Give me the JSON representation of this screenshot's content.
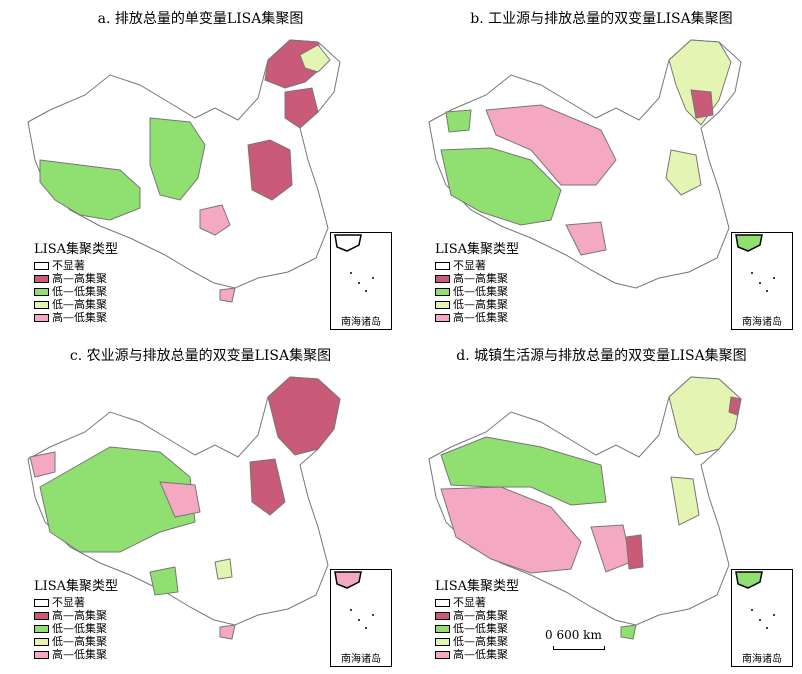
{
  "colors": {
    "not_significant": "#ffffff",
    "high_high": "#c95a78",
    "low_low": "#8fe070",
    "low_high": "#e4f5b3",
    "high_low": "#f5a8c2",
    "border": "#888888"
  },
  "legend": {
    "title": "LISA集聚类型",
    "items": [
      {
        "key": "not_significant",
        "label": "不显著"
      },
      {
        "key": "high_high",
        "label": "高—高集聚"
      },
      {
        "key": "low_low",
        "label": "低—低集聚"
      },
      {
        "key": "low_high",
        "label": "低—高集聚"
      },
      {
        "key": "high_low",
        "label": "高—低集聚"
      }
    ]
  },
  "panels": [
    {
      "id": "a",
      "title": "a. 排放总量的单变量LISA集聚图"
    },
    {
      "id": "b",
      "title": "b. 工业源与排放总量的双变量LISA集聚图"
    },
    {
      "id": "c",
      "title": "c. 农业源与排放总量的双变量LISA集聚图"
    },
    {
      "id": "d",
      "title": "d. 城镇生活源与排放总量的双变量LISA集聚图"
    }
  ],
  "inset_label": "南海诸岛",
  "scale_bar": {
    "label": "0    600 km"
  }
}
